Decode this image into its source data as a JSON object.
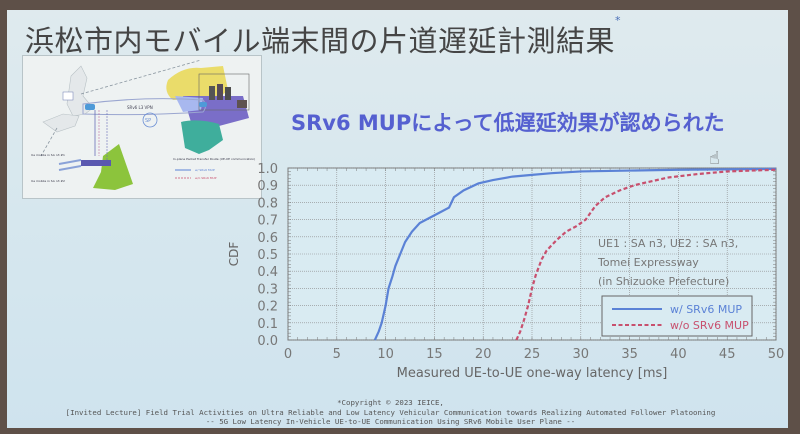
{
  "slide": {
    "title": "浜松市内モバイル端末間の片道遅延計測結果",
    "title_footnote_mark": "*",
    "headline": "SRv6 MUPによって低遅延効果が認められた",
    "headline_color": "#5560d0",
    "cursor_icon": "hand-pointer-icon"
  },
  "map": {
    "labels": {
      "l2vpn": "SRv6 L3 VPN",
      "sp": "SP",
      "dc": "In Data Center of Ground Floor",
      "server": "SGW / AMF / SMF / UPF",
      "ue1": "Ue mobile in SA n3 #1",
      "ue2": "Ue mobile in SA n3 #2",
      "gnb": "gNB",
      "legend_title": "In-plane Packet Transfer Route (UE-UE communication)",
      "legend_with": "w/ SRv6 MUP",
      "legend_without": "w/o SRv6 MUP"
    }
  },
  "footer": {
    "copyright": "*Copyright © 2023 IEICE,",
    "line1": "[Invited Lecture] Field Trial Activities on Ultra Reliable and Low Latency Vehicular Communication towards Realizing Automated Follower Platooning",
    "line2": "-- 5G Low Latency In-Vehicle UE-to-UE Communication Using SRv6 Mobile User Plane --"
  },
  "chart_data": {
    "type": "line",
    "title": "",
    "xlabel": "Measured UE-to-UE one-way latency [ms]",
    "ylabel": "CDF",
    "xlim": [
      0,
      50
    ],
    "ylim": [
      0.0,
      1.0
    ],
    "xticks": [
      0,
      5,
      10,
      15,
      20,
      25,
      30,
      35,
      40,
      45,
      50
    ],
    "yticks": [
      "0.0",
      "0.1",
      "0.2",
      "0.3",
      "0.4",
      "0.5",
      "0.6",
      "0.7",
      "0.8",
      "0.9",
      "1.0"
    ],
    "grid": true,
    "legend_position": "lower right",
    "annotation": [
      "UE1 : SA n3, UE2 : SA n3,",
      "Tomei Expressway",
      "(in Shizuoke Prefecture)"
    ],
    "series": [
      {
        "name": "w/ SRv6 MUP",
        "style": "solid",
        "color": "#5b82d6",
        "x": [
          8.9,
          9.3,
          9.6,
          10.0,
          10.3,
          10.7,
          11.0,
          11.5,
          12.0,
          12.7,
          13.5,
          14.5,
          15.5,
          16.5,
          17.0,
          18.0,
          19.5,
          21.0,
          23.0,
          25.0,
          27.0,
          30.0,
          35.0,
          40.0,
          50.0
        ],
        "y": [
          0.0,
          0.05,
          0.1,
          0.2,
          0.3,
          0.37,
          0.43,
          0.5,
          0.57,
          0.63,
          0.68,
          0.71,
          0.74,
          0.77,
          0.83,
          0.87,
          0.91,
          0.93,
          0.95,
          0.96,
          0.97,
          0.98,
          0.985,
          0.99,
          0.995
        ]
      },
      {
        "name": "w/o SRv6 MUP",
        "style": "dashed",
        "color": "#c8506e",
        "x": [
          23.4,
          23.8,
          24.2,
          24.6,
          25.0,
          25.4,
          26.0,
          26.5,
          27.5,
          28.5,
          29.5,
          30.5,
          31.5,
          32.5,
          34.0,
          35.5,
          37.0,
          39.0,
          42.0,
          45.0,
          50.0
        ],
        "y": [
          0.0,
          0.05,
          0.12,
          0.2,
          0.3,
          0.38,
          0.47,
          0.52,
          0.58,
          0.63,
          0.66,
          0.7,
          0.78,
          0.83,
          0.87,
          0.9,
          0.92,
          0.945,
          0.965,
          0.98,
          0.99
        ]
      }
    ]
  }
}
